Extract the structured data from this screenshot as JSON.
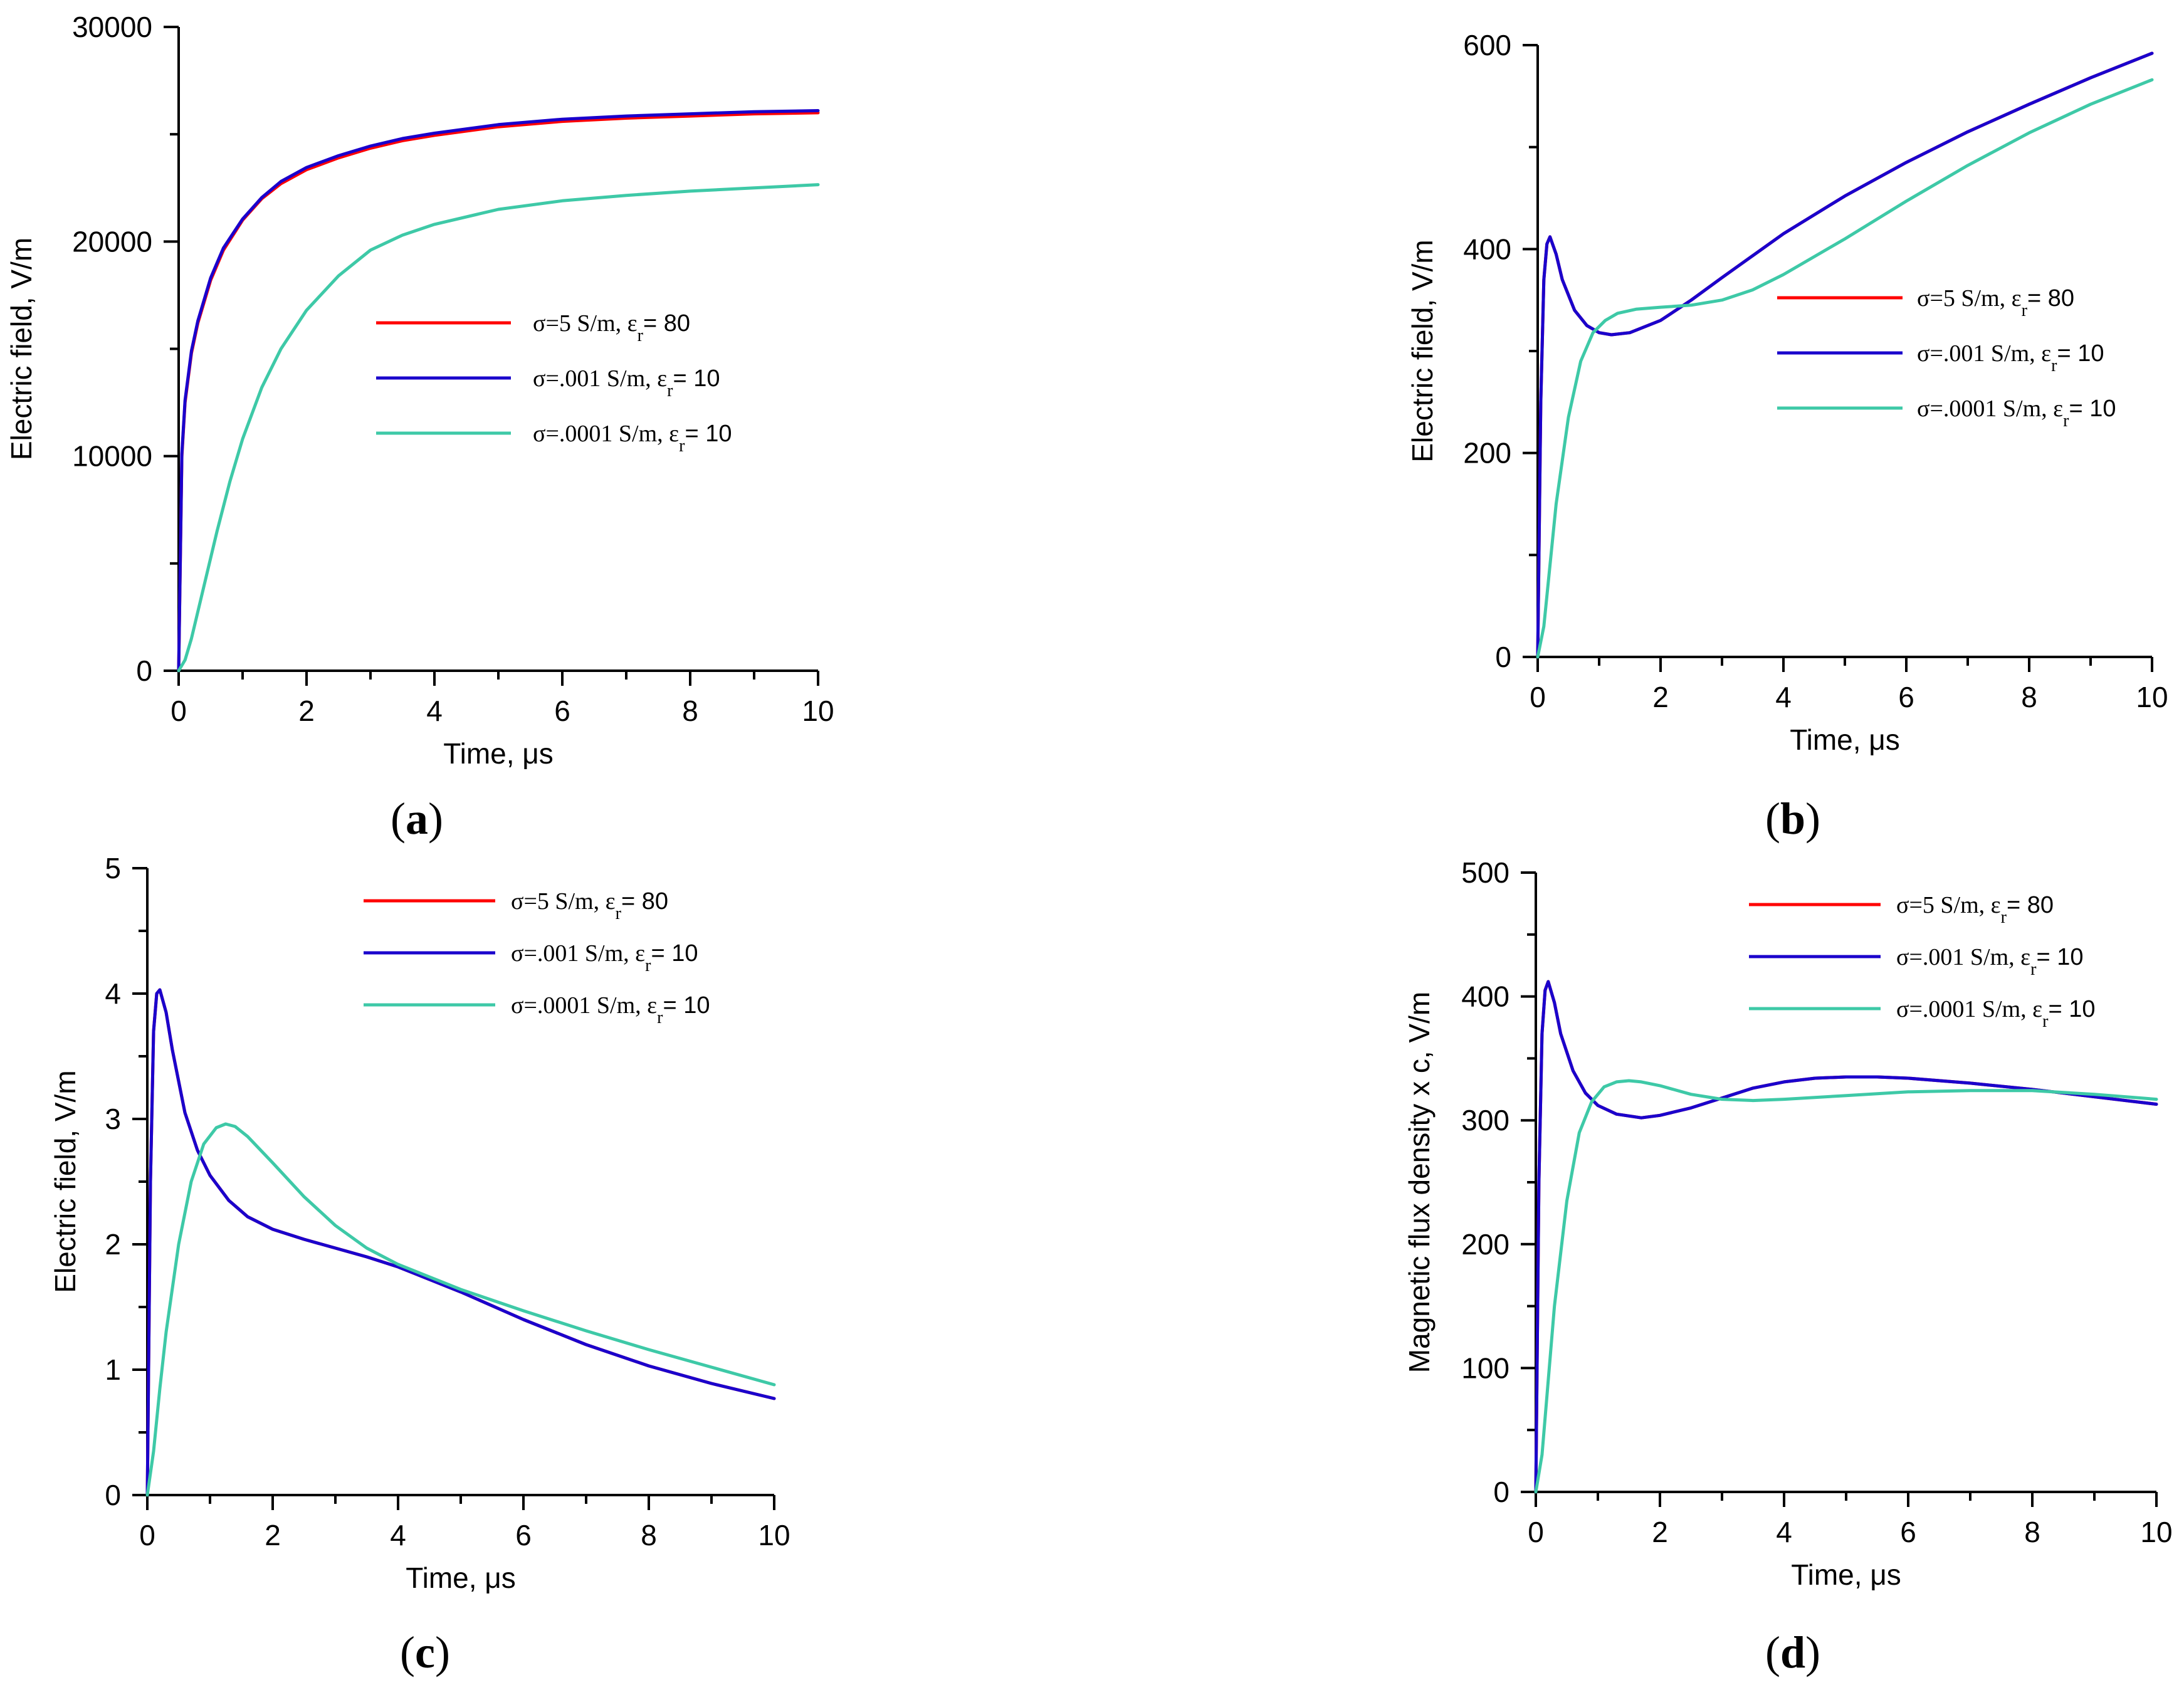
{
  "colors": {
    "red": "#ff0000",
    "blue": "#1a00cc",
    "teal": "#3ec9a7"
  },
  "chart_data": [
    {
      "type": "line",
      "panel_label": "a",
      "xlabel": "Time, μs",
      "ylabel": "Electric field, V/m",
      "xlim": [
        0,
        10
      ],
      "ylim": [
        0,
        30000
      ],
      "x_ticks": [
        0,
        2,
        4,
        6,
        8,
        10
      ],
      "y_ticks": [
        0,
        10000,
        20000,
        30000
      ],
      "legend_position": "center-right",
      "series": [
        {
          "name": "σ=5 S/m, εr= 80",
          "parts": [
            "σ=5 S/m, ε",
            "r",
            "= 80"
          ],
          "color": "#ff0000",
          "x": [
            0,
            0.05,
            0.1,
            0.2,
            0.3,
            0.5,
            0.7,
            1,
            1.3,
            1.6,
            2,
            2.5,
            3,
            3.5,
            4,
            5,
            6,
            7,
            8,
            9,
            10
          ],
          "y": [
            0,
            10000,
            12500,
            14800,
            16200,
            18200,
            19600,
            21000,
            22000,
            22700,
            23350,
            23900,
            24350,
            24700,
            24950,
            25350,
            25600,
            25750,
            25850,
            25950,
            26000
          ]
        },
        {
          "name": "σ=.001 S/m, εr= 10",
          "parts": [
            "σ=.001 S/m, ε",
            "r",
            "= 10"
          ],
          "color": "#1a00cc",
          "x": [
            0,
            0.05,
            0.1,
            0.2,
            0.3,
            0.5,
            0.7,
            1,
            1.3,
            1.6,
            2,
            2.5,
            3,
            3.5,
            4,
            5,
            6,
            7,
            8,
            9,
            10
          ],
          "y": [
            0,
            10100,
            12600,
            14900,
            16300,
            18300,
            19700,
            21050,
            22050,
            22800,
            23450,
            24000,
            24450,
            24800,
            25050,
            25450,
            25700,
            25850,
            25950,
            26050,
            26100
          ]
        },
        {
          "name": "σ=.0001 S/m, εr= 10",
          "parts": [
            "σ=.0001 S/m, ε",
            "r",
            "= 10"
          ],
          "color": "#3ec9a7",
          "x": [
            0,
            0.1,
            0.2,
            0.4,
            0.6,
            0.8,
            1,
            1.3,
            1.6,
            2,
            2.5,
            3,
            3.5,
            4,
            5,
            6,
            7,
            8,
            9,
            10
          ],
          "y": [
            0,
            500,
            1500,
            4000,
            6500,
            8800,
            10800,
            13200,
            15000,
            16800,
            18400,
            19600,
            20300,
            20800,
            21500,
            21900,
            22150,
            22350,
            22500,
            22650
          ]
        }
      ]
    },
    {
      "type": "line",
      "panel_label": "b",
      "xlabel": "Time, μs",
      "ylabel": "Electric field, V/m",
      "xlim": [
        0,
        10
      ],
      "ylim": [
        0,
        600
      ],
      "x_ticks": [
        0,
        2,
        4,
        6,
        8,
        10
      ],
      "y_ticks": [
        0,
        200,
        400,
        600
      ],
      "legend_position": "center-right",
      "series": [
        {
          "name": "σ=5 S/m, εr= 80",
          "parts": [
            "σ=5 S/m, ε",
            "r",
            "= 80"
          ],
          "color": "#ff0000",
          "x": [
            0,
            0.05,
            0.1,
            0.15,
            0.2,
            0.3,
            0.4,
            0.6,
            0.8,
            1,
            1.2,
            1.5,
            2,
            2.5,
            3,
            4,
            5,
            6,
            7,
            8,
            9,
            10
          ],
          "y": [
            0,
            250,
            370,
            405,
            412,
            395,
            370,
            340,
            325,
            318,
            316,
            318,
            330,
            350,
            372,
            415,
            452,
            485,
            515,
            542,
            568,
            592
          ]
        },
        {
          "name": "σ=.001 S/m, εr= 10",
          "parts": [
            "σ=.001 S/m, ε",
            "r",
            "= 10"
          ],
          "color": "#1a00cc",
          "x": [
            0,
            0.05,
            0.1,
            0.15,
            0.2,
            0.3,
            0.4,
            0.6,
            0.8,
            1,
            1.2,
            1.5,
            2,
            2.5,
            3,
            4,
            5,
            6,
            7,
            8,
            9,
            10
          ],
          "y": [
            0,
            250,
            370,
            405,
            412,
            395,
            370,
            340,
            325,
            318,
            316,
            318,
            330,
            350,
            372,
            415,
            452,
            485,
            515,
            542,
            568,
            592
          ]
        },
        {
          "name": "σ=.0001 S/m, εr= 10",
          "parts": [
            "σ=.0001 S/m, ε",
            "r",
            "= 10"
          ],
          "color": "#3ec9a7",
          "x": [
            0,
            0.1,
            0.2,
            0.3,
            0.5,
            0.7,
            0.9,
            1.1,
            1.3,
            1.6,
            2,
            2.5,
            3,
            3.5,
            4,
            5,
            6,
            7,
            8,
            9,
            10
          ],
          "y": [
            0,
            30,
            90,
            150,
            235,
            290,
            318,
            330,
            337,
            341,
            343,
            345,
            350,
            360,
            375,
            410,
            447,
            482,
            514,
            542,
            566
          ]
        }
      ]
    },
    {
      "type": "line",
      "panel_label": "c",
      "xlabel": "Time, μs",
      "ylabel": "Electric field, V/m",
      "xlim": [
        0,
        10
      ],
      "ylim": [
        0,
        5
      ],
      "x_ticks": [
        0,
        2,
        4,
        6,
        8,
        10
      ],
      "y_ticks": [
        0,
        1,
        2,
        3,
        4,
        5
      ],
      "legend_position": "top-right",
      "series": [
        {
          "name": "σ=5 S/m, εr= 80",
          "parts": [
            "σ=5 S/m, ε",
            "r",
            "= 80"
          ],
          "color": "#ff0000",
          "x": [
            0,
            0.05,
            0.1,
            0.15,
            0.2,
            0.3,
            0.4,
            0.6,
            0.8,
            1,
            1.3,
            1.6,
            2,
            2.5,
            3,
            3.5,
            4,
            5,
            6,
            7,
            8,
            9,
            10
          ],
          "y": [
            0,
            2.5,
            3.7,
            4.0,
            4.03,
            3.85,
            3.55,
            3.05,
            2.75,
            2.55,
            2.35,
            2.22,
            2.12,
            2.04,
            1.97,
            1.9,
            1.82,
            1.62,
            1.4,
            1.2,
            1.03,
            0.89,
            0.77
          ]
        },
        {
          "name": "σ=.001 S/m, εr= 10",
          "parts": [
            "σ=.001 S/m, ε",
            "r",
            "= 10"
          ],
          "color": "#1a00cc",
          "x": [
            0,
            0.05,
            0.1,
            0.15,
            0.2,
            0.3,
            0.4,
            0.6,
            0.8,
            1,
            1.3,
            1.6,
            2,
            2.5,
            3,
            3.5,
            4,
            5,
            6,
            7,
            8,
            9,
            10
          ],
          "y": [
            0,
            2.5,
            3.7,
            4.0,
            4.03,
            3.85,
            3.55,
            3.05,
            2.75,
            2.55,
            2.35,
            2.22,
            2.12,
            2.04,
            1.97,
            1.9,
            1.82,
            1.62,
            1.4,
            1.2,
            1.03,
            0.89,
            0.77
          ]
        },
        {
          "name": "σ=.0001 S/m, εr= 10",
          "parts": [
            "σ=.0001 S/m, ε",
            "r",
            "= 10"
          ],
          "color": "#3ec9a7",
          "x": [
            0,
            0.1,
            0.2,
            0.3,
            0.5,
            0.7,
            0.9,
            1.1,
            1.25,
            1.4,
            1.6,
            2,
            2.5,
            3,
            3.5,
            4,
            5,
            6,
            7,
            8,
            9,
            10
          ],
          "y": [
            0,
            0.35,
            0.85,
            1.3,
            2.0,
            2.5,
            2.8,
            2.93,
            2.96,
            2.94,
            2.86,
            2.65,
            2.38,
            2.15,
            1.97,
            1.84,
            1.64,
            1.47,
            1.31,
            1.16,
            1.02,
            0.88
          ]
        }
      ]
    },
    {
      "type": "line",
      "panel_label": "d",
      "xlabel": "Time, μs",
      "ylabel": "Magnetic flux density x c, V/m",
      "xlim": [
        0,
        10
      ],
      "ylim": [
        0,
        500
      ],
      "x_ticks": [
        0,
        2,
        4,
        6,
        8,
        10
      ],
      "y_ticks": [
        0,
        100,
        200,
        300,
        400,
        500
      ],
      "legend_position": "top-right",
      "series": [
        {
          "name": "σ=5 S/m, εr= 80",
          "parts": [
            "σ=5 S/m, ε",
            "r",
            "= 80"
          ],
          "color": "#ff0000",
          "x": [
            0,
            0.05,
            0.1,
            0.15,
            0.2,
            0.3,
            0.4,
            0.6,
            0.8,
            1,
            1.3,
            1.7,
            2,
            2.5,
            3,
            3.5,
            4,
            4.5,
            5,
            5.5,
            6,
            7,
            8,
            9,
            10
          ],
          "y": [
            0,
            250,
            370,
            405,
            412,
            395,
            370,
            340,
            322,
            312,
            305,
            302,
            304,
            310,
            318,
            326,
            331,
            334,
            335,
            335,
            334,
            330,
            325,
            319,
            313
          ]
        },
        {
          "name": "σ=.001 S/m, εr= 10",
          "parts": [
            "σ=.001 S/m, ε",
            "r",
            "= 10"
          ],
          "color": "#1a00cc",
          "x": [
            0,
            0.05,
            0.1,
            0.15,
            0.2,
            0.3,
            0.4,
            0.6,
            0.8,
            1,
            1.3,
            1.7,
            2,
            2.5,
            3,
            3.5,
            4,
            4.5,
            5,
            5.5,
            6,
            7,
            8,
            9,
            10
          ],
          "y": [
            0,
            250,
            370,
            405,
            412,
            395,
            370,
            340,
            322,
            312,
            305,
            302,
            304,
            310,
            318,
            326,
            331,
            334,
            335,
            335,
            334,
            330,
            325,
            319,
            313
          ]
        },
        {
          "name": "σ=.0001 S/m, εr= 10",
          "parts": [
            "σ=.0001 S/m, ε",
            "r",
            "= 10"
          ],
          "color": "#3ec9a7",
          "x": [
            0,
            0.1,
            0.2,
            0.3,
            0.5,
            0.7,
            0.9,
            1.1,
            1.3,
            1.5,
            1.7,
            2,
            2.5,
            3,
            3.5,
            4,
            5,
            6,
            7,
            8,
            9,
            10
          ],
          "y": [
            0,
            30,
            90,
            150,
            235,
            290,
            315,
            327,
            331,
            332,
            331,
            328,
            321,
            317,
            316,
            317,
            320,
            323,
            324,
            324,
            321,
            317
          ]
        }
      ]
    }
  ]
}
